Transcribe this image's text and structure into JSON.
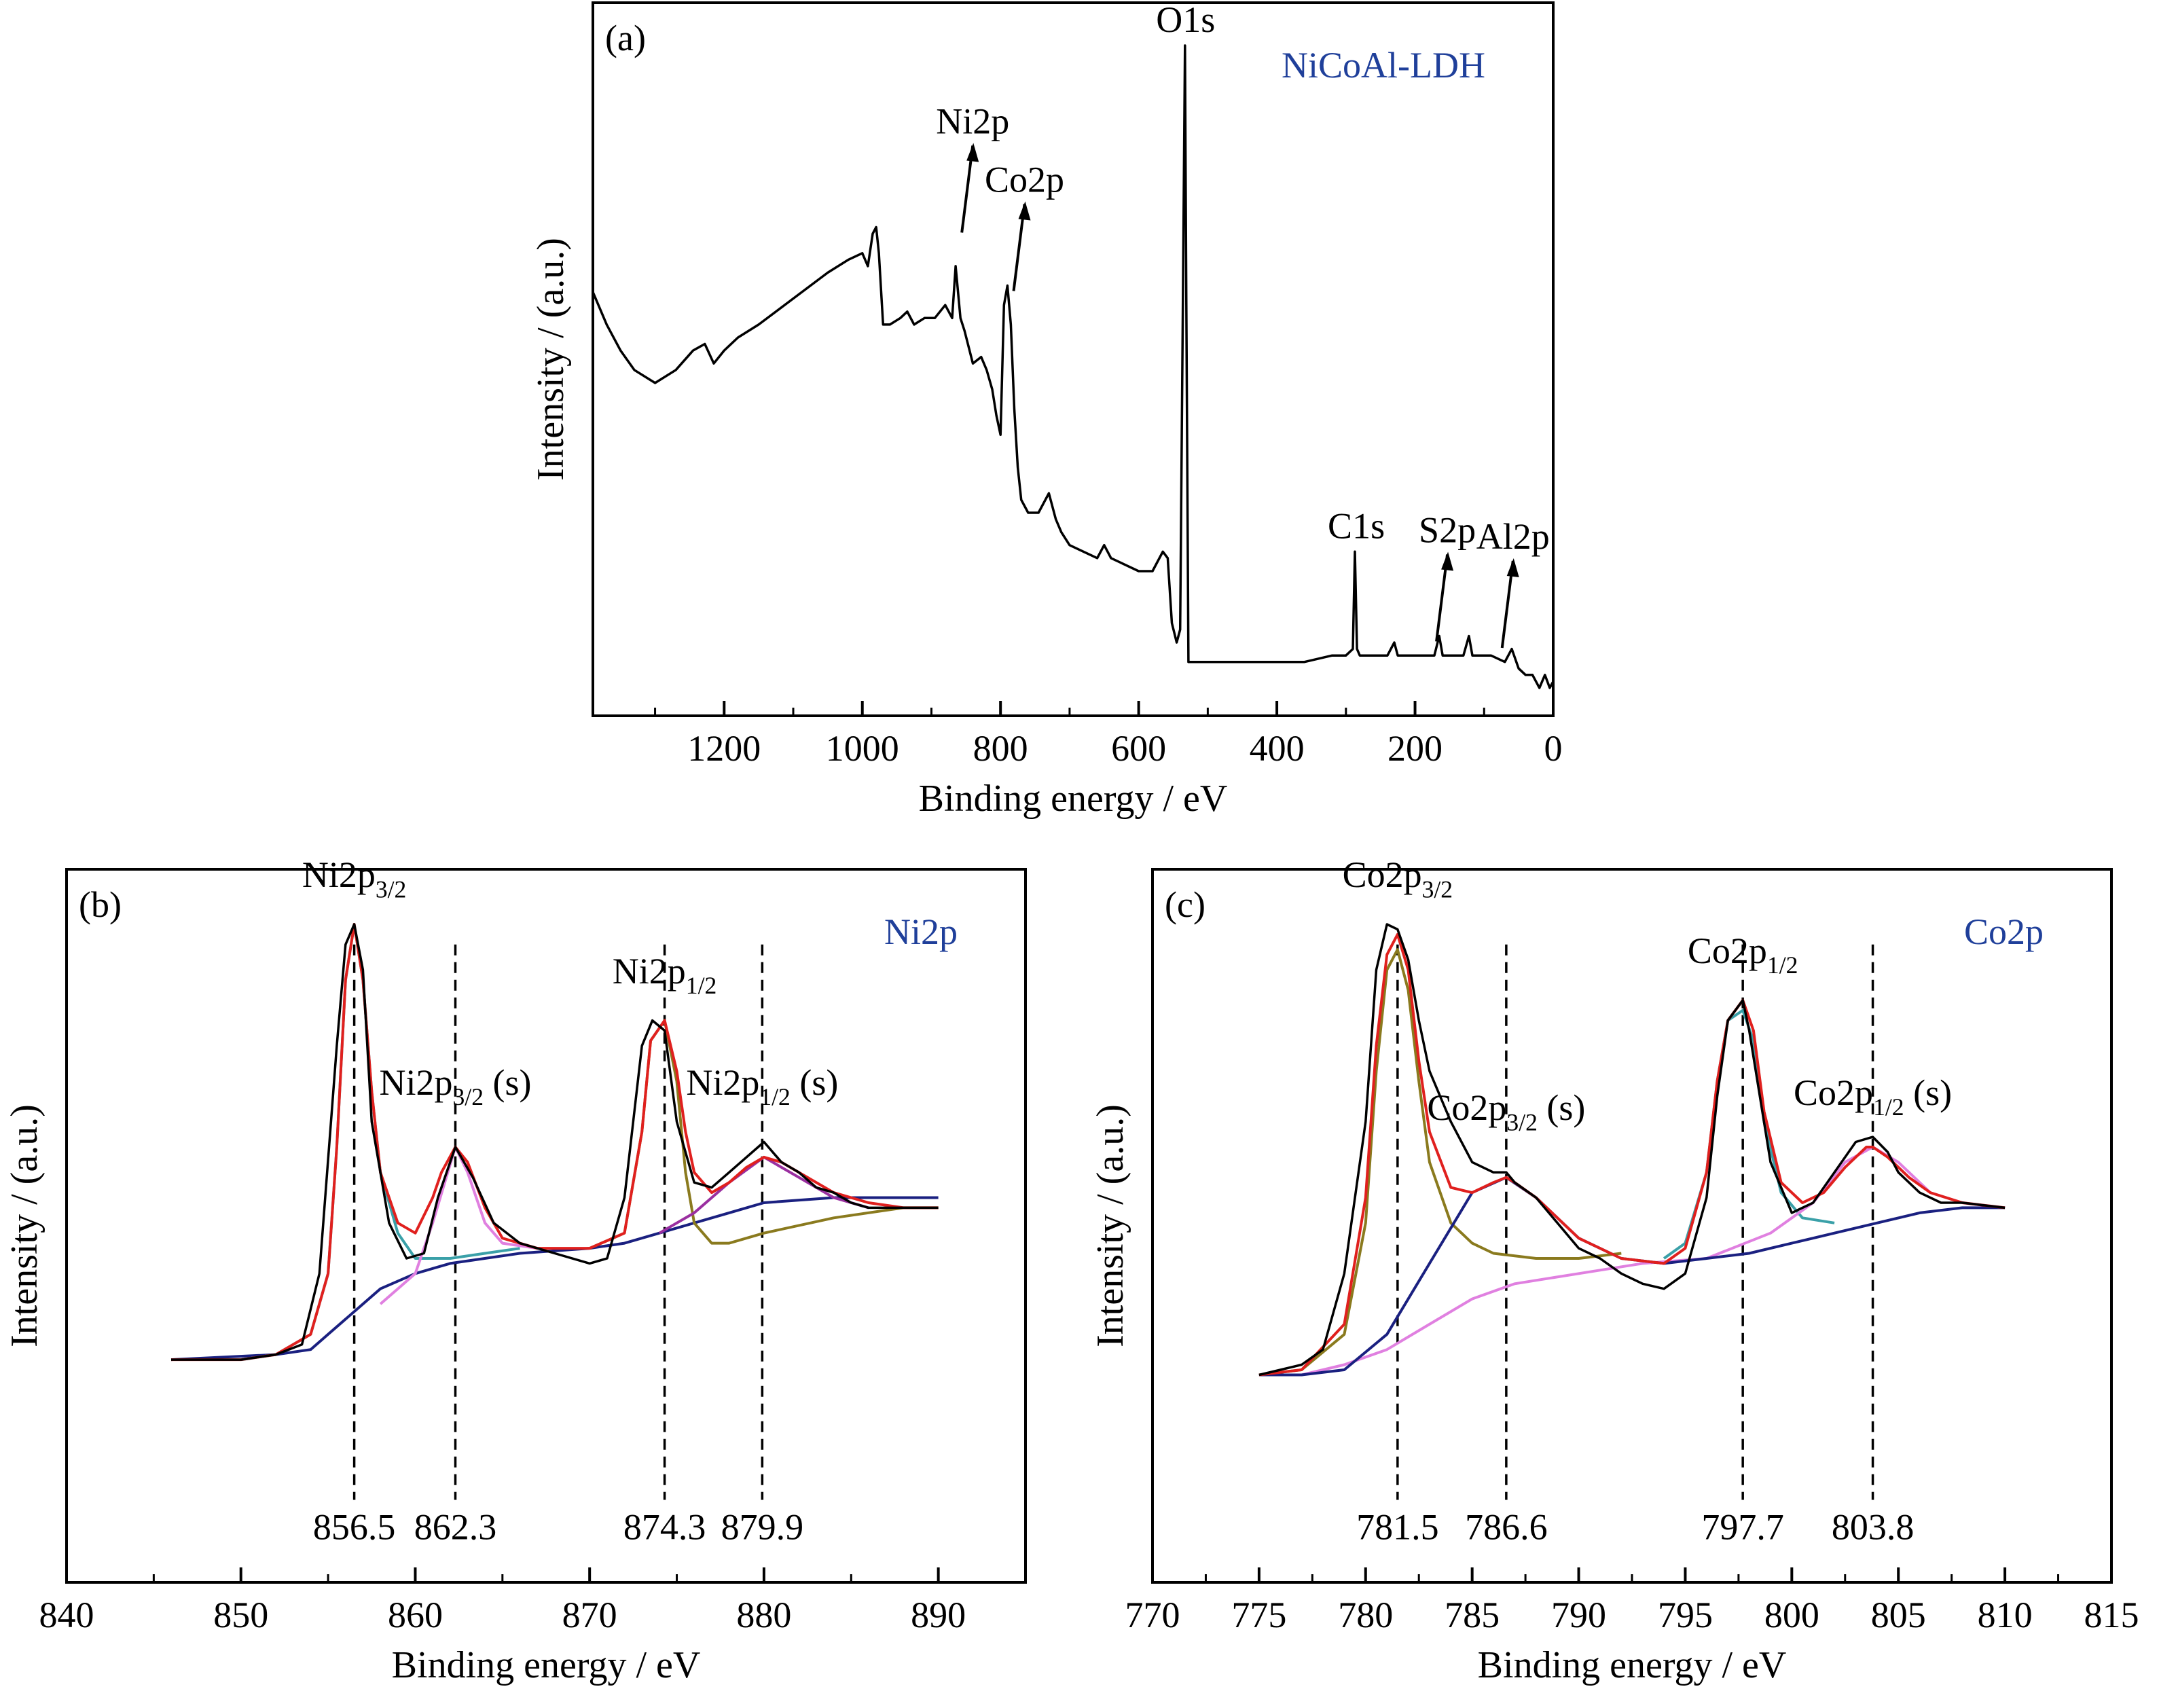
{
  "chart_data": [
    {
      "panel_label": "(a)",
      "legend_title": "NiCoAl-LDH",
      "type": "line",
      "xlabel": "Binding energy / eV",
      "ylabel": "Intensity / (a.u.)",
      "x_reversed": true,
      "xlim": [
        1390,
        0
      ],
      "ylim": [
        0,
        1.0
      ],
      "xticks": [
        1200,
        1000,
        800,
        600,
        400,
        200,
        0
      ],
      "series": [
        {
          "style": "measured",
          "color": "#000000",
          "x": [
            1390,
            1370,
            1350,
            1330,
            1300,
            1270,
            1245,
            1228,
            1215,
            1200,
            1180,
            1150,
            1100,
            1050,
            1020,
            1000,
            992,
            985,
            980,
            976,
            970,
            960,
            945,
            935,
            925,
            910,
            895,
            880,
            870,
            865,
            858,
            852,
            840,
            828,
            820,
            812,
            806,
            800,
            795,
            790,
            785,
            780,
            775,
            770,
            760,
            745,
            730,
            720,
            712,
            700,
            680,
            660,
            650,
            640,
            620,
            600,
            580,
            565,
            558,
            552,
            545,
            540,
            536,
            533,
            531,
            528,
            525,
            520,
            505,
            480,
            450,
            420,
            390,
            360,
            320,
            300,
            290,
            287,
            284,
            280,
            260,
            240,
            230,
            225,
            200,
            172,
            165,
            160,
            130,
            122,
            117,
            110,
            90,
            70,
            60,
            50,
            40,
            30,
            20,
            12,
            5,
            0
          ],
          "y": [
            0.62,
            0.57,
            0.53,
            0.5,
            0.48,
            0.5,
            0.53,
            0.54,
            0.51,
            0.53,
            0.55,
            0.57,
            0.61,
            0.65,
            0.67,
            0.68,
            0.66,
            0.71,
            0.72,
            0.68,
            0.57,
            0.57,
            0.58,
            0.59,
            0.57,
            0.58,
            0.58,
            0.6,
            0.58,
            0.66,
            0.58,
            0.56,
            0.51,
            0.52,
            0.5,
            0.47,
            0.43,
            0.4,
            0.6,
            0.63,
            0.57,
            0.44,
            0.35,
            0.3,
            0.28,
            0.28,
            0.31,
            0.27,
            0.25,
            0.23,
            0.22,
            0.21,
            0.23,
            0.21,
            0.2,
            0.19,
            0.19,
            0.22,
            0.21,
            0.11,
            0.08,
            0.1,
            0.6,
            1.0,
            0.6,
            0.05,
            0.05,
            0.05,
            0.05,
            0.05,
            0.05,
            0.05,
            0.05,
            0.05,
            0.06,
            0.06,
            0.07,
            0.22,
            0.07,
            0.06,
            0.06,
            0.06,
            0.08,
            0.06,
            0.06,
            0.06,
            0.09,
            0.06,
            0.06,
            0.09,
            0.06,
            0.06,
            0.06,
            0.05,
            0.07,
            0.04,
            0.03,
            0.03,
            0.01,
            0.03,
            0.01,
            0.02
          ]
        }
      ],
      "annotations": [
        {
          "text": "O1s",
          "x": 532,
          "y": 1.0,
          "arrow": false
        },
        {
          "text": "Ni2p",
          "x": 856,
          "y": 0.72,
          "arrow": true
        },
        {
          "text": "Co2p",
          "x": 781,
          "y": 0.63,
          "arrow": true
        },
        {
          "text": "C1s",
          "x": 285,
          "y": 0.22,
          "arrow": false
        },
        {
          "text": "S2p",
          "x": 169,
          "y": 0.09,
          "arrow": true
        },
        {
          "text": "Al2p",
          "x": 74,
          "y": 0.08,
          "arrow": true
        }
      ]
    },
    {
      "panel_label": "(b)",
      "legend_title": "Ni2p",
      "type": "line",
      "xlabel": "Binding energy / eV",
      "ylabel": "Intensity / (a.u.)",
      "xlim": [
        840,
        895
      ],
      "ylim": [
        0,
        1.0
      ],
      "xticks": [
        840,
        850,
        860,
        870,
        880,
        890
      ],
      "series": [
        {
          "style": "measured",
          "color": "#000000",
          "x": [
            846,
            848,
            850,
            852,
            853.5,
            854.5,
            855.5,
            856.0,
            856.5,
            857.0,
            857.5,
            858.5,
            859.5,
            860.5,
            861.3,
            862.3,
            863.3,
            864.5,
            866,
            868,
            870,
            871,
            872,
            873,
            873.6,
            874.3,
            875,
            876,
            877,
            878,
            879,
            880,
            881,
            882,
            883,
            884,
            885,
            886,
            887,
            888,
            889,
            890
          ],
          "y": [
            0.13,
            0.13,
            0.13,
            0.14,
            0.16,
            0.3,
            0.75,
            0.95,
            0.99,
            0.9,
            0.6,
            0.4,
            0.33,
            0.34,
            0.45,
            0.55,
            0.49,
            0.4,
            0.36,
            0.34,
            0.32,
            0.33,
            0.45,
            0.75,
            0.8,
            0.78,
            0.6,
            0.48,
            0.47,
            0.5,
            0.53,
            0.56,
            0.52,
            0.5,
            0.47,
            0.46,
            0.44,
            0.43,
            0.43,
            0.43,
            0.43,
            0.43
          ]
        },
        {
          "style": "fit-envelope",
          "color": "#e0201e",
          "x": [
            846,
            850,
            852,
            854,
            855,
            855.5,
            856,
            856.5,
            857,
            857.5,
            858,
            859,
            860,
            861,
            861.5,
            862.3,
            863,
            864,
            865,
            867,
            870,
            872,
            873,
            873.5,
            874.3,
            875,
            875.5,
            876,
            877,
            878,
            879,
            880,
            881,
            882,
            884,
            886,
            888,
            890
          ],
          "y": [
            0.13,
            0.13,
            0.14,
            0.18,
            0.3,
            0.55,
            0.88,
            0.99,
            0.88,
            0.66,
            0.5,
            0.4,
            0.38,
            0.45,
            0.5,
            0.55,
            0.52,
            0.43,
            0.37,
            0.35,
            0.35,
            0.38,
            0.58,
            0.76,
            0.8,
            0.7,
            0.58,
            0.5,
            0.46,
            0.48,
            0.51,
            0.53,
            0.52,
            0.5,
            0.46,
            0.44,
            0.43,
            0.43
          ]
        },
        {
          "style": "component",
          "color": "#3aa0a8",
          "x": [
            850,
            852,
            854,
            855,
            855.5,
            856,
            856.5,
            857,
            857.5,
            858,
            859,
            860,
            862,
            864,
            866
          ],
          "y": [
            0.13,
            0.14,
            0.18,
            0.3,
            0.55,
            0.88,
            0.99,
            0.88,
            0.66,
            0.5,
            0.38,
            0.33,
            0.33,
            0.34,
            0.35
          ]
        },
        {
          "style": "component",
          "color": "#e080e0",
          "x": [
            858,
            859,
            860,
            861,
            862.3,
            863,
            864,
            865,
            867
          ],
          "y": [
            0.24,
            0.27,
            0.3,
            0.4,
            0.55,
            0.5,
            0.4,
            0.36,
            0.35
          ]
        },
        {
          "style": "component",
          "color": "#8a7a1e",
          "x": [
            870,
            872,
            873,
            873.5,
            874.3,
            875,
            875.5,
            876,
            877,
            878,
            880,
            884,
            888,
            890
          ],
          "y": [
            0.35,
            0.38,
            0.58,
            0.76,
            0.8,
            0.68,
            0.5,
            0.4,
            0.36,
            0.36,
            0.38,
            0.41,
            0.43,
            0.43
          ]
        },
        {
          "style": "component",
          "color": "#9a2fa0",
          "x": [
            874,
            876,
            878,
            880,
            882,
            884,
            886
          ],
          "y": [
            0.38,
            0.42,
            0.48,
            0.53,
            0.49,
            0.45,
            0.43
          ]
        },
        {
          "style": "background",
          "color": "#1a2080",
          "x": [
            846,
            852,
            854,
            855,
            856,
            857,
            858,
            860,
            862,
            866,
            870,
            872,
            874,
            876,
            878,
            880,
            884,
            888,
            890
          ],
          "y": [
            0.13,
            0.14,
            0.15,
            0.18,
            0.21,
            0.24,
            0.27,
            0.3,
            0.32,
            0.34,
            0.35,
            0.36,
            0.38,
            0.4,
            0.42,
            0.44,
            0.45,
            0.45,
            0.45
          ]
        }
      ],
      "reference_lines": [
        {
          "x": 856.5,
          "label": "856.5"
        },
        {
          "x": 862.3,
          "label": "862.3"
        },
        {
          "x": 874.3,
          "label": "874.3"
        },
        {
          "x": 879.9,
          "label": "879.9"
        }
      ],
      "annotations": [
        {
          "text": "Ni2p",
          "sub": "3/2",
          "suffix": "",
          "x": 856.5,
          "y": 1.05
        },
        {
          "text": "Ni2p",
          "sub": "3/2",
          "suffix": " (s)",
          "x": 862.3,
          "y": 0.64
        },
        {
          "text": "Ni2p",
          "sub": "1/2",
          "suffix": "",
          "x": 874.3,
          "y": 0.86
        },
        {
          "text": "Ni2p",
          "sub": "1/2",
          "suffix": " (s)",
          "x": 879.9,
          "y": 0.64
        }
      ]
    },
    {
      "panel_label": "(c)",
      "legend_title": "Co2p",
      "type": "line",
      "xlabel": "Binding energy / eV",
      "ylabel": "Intensity / (a.u.)",
      "xlim": [
        770,
        815
      ],
      "ylim": [
        0,
        1.0
      ],
      "xticks": [
        770,
        775,
        780,
        785,
        790,
        795,
        800,
        805,
        810,
        815
      ],
      "series": [
        {
          "style": "measured",
          "color": "#000000",
          "x": [
            775,
            777,
            778,
            779,
            780,
            780.5,
            781,
            781.5,
            782,
            782.5,
            783,
            784,
            785,
            786,
            786.6,
            787,
            788,
            789,
            790,
            791,
            792,
            793,
            794,
            795,
            796,
            796.5,
            797,
            797.7,
            798,
            799,
            800,
            801,
            802,
            803,
            803.8,
            804.5,
            805,
            806,
            807,
            808,
            810
          ],
          "y": [
            0.1,
            0.12,
            0.15,
            0.3,
            0.6,
            0.9,
            0.99,
            0.98,
            0.92,
            0.8,
            0.7,
            0.6,
            0.52,
            0.5,
            0.5,
            0.48,
            0.45,
            0.4,
            0.35,
            0.33,
            0.3,
            0.28,
            0.27,
            0.3,
            0.45,
            0.65,
            0.8,
            0.84,
            0.78,
            0.52,
            0.42,
            0.44,
            0.5,
            0.56,
            0.57,
            0.54,
            0.5,
            0.46,
            0.44,
            0.44,
            0.43
          ]
        },
        {
          "style": "fit-envelope",
          "color": "#e0201e",
          "x": [
            775,
            777,
            779,
            780,
            780.5,
            781,
            781.5,
            782,
            782.5,
            783,
            784,
            785,
            786,
            786.6,
            787,
            788,
            789,
            790,
            792,
            794,
            795,
            796,
            796.5,
            797,
            797.7,
            798.2,
            798.7,
            799.5,
            800.5,
            801.5,
            802.5,
            803.5,
            803.8,
            804.5,
            805.5,
            806.5,
            808,
            810
          ],
          "y": [
            0.1,
            0.11,
            0.2,
            0.45,
            0.75,
            0.93,
            0.97,
            0.9,
            0.72,
            0.58,
            0.47,
            0.46,
            0.48,
            0.49,
            0.48,
            0.45,
            0.41,
            0.37,
            0.33,
            0.32,
            0.35,
            0.5,
            0.68,
            0.8,
            0.84,
            0.78,
            0.62,
            0.48,
            0.44,
            0.46,
            0.51,
            0.55,
            0.55,
            0.53,
            0.49,
            0.46,
            0.44,
            0.43
          ]
        },
        {
          "style": "component",
          "color": "#8a7a1e",
          "x": [
            775,
            777,
            779,
            780,
            780.5,
            781,
            781.5,
            782,
            782.5,
            783,
            784,
            785,
            786,
            788,
            790,
            792
          ],
          "y": [
            0.1,
            0.11,
            0.18,
            0.4,
            0.7,
            0.9,
            0.94,
            0.86,
            0.68,
            0.52,
            0.4,
            0.36,
            0.34,
            0.33,
            0.33,
            0.34
          ]
        },
        {
          "style": "component",
          "color": "#3aa0a8",
          "x": [
            794,
            795,
            796,
            796.5,
            797,
            797.7,
            798.2,
            798.7,
            799.5,
            800.5,
            802
          ],
          "y": [
            0.33,
            0.36,
            0.5,
            0.68,
            0.8,
            0.82,
            0.76,
            0.6,
            0.46,
            0.41,
            0.4
          ]
        },
        {
          "style": "component",
          "color": "#e080e0",
          "x": [
            777,
            779,
            781,
            783,
            785,
            787,
            790,
            793,
            796,
            799,
            801,
            802.5,
            803.8,
            805,
            806.5,
            808,
            810
          ],
          "y": [
            0.1,
            0.12,
            0.15,
            0.2,
            0.25,
            0.28,
            0.3,
            0.32,
            0.33,
            0.38,
            0.44,
            0.52,
            0.55,
            0.52,
            0.46,
            0.44,
            0.43
          ]
        },
        {
          "style": "component",
          "color": "#1a2080",
          "x": [
            775,
            777,
            779,
            781,
            783,
            785,
            786.6,
            788,
            790,
            792,
            794,
            796,
            798,
            800,
            802,
            804,
            806,
            808,
            810
          ],
          "y": [
            0.1,
            0.1,
            0.11,
            0.18,
            0.32,
            0.46,
            0.49,
            0.45,
            0.37,
            0.33,
            0.32,
            0.33,
            0.34,
            0.36,
            0.38,
            0.4,
            0.42,
            0.43,
            0.43
          ]
        }
      ],
      "reference_lines": [
        {
          "x": 781.5,
          "label": "781.5"
        },
        {
          "x": 786.6,
          "label": "786.6"
        },
        {
          "x": 797.7,
          "label": "797.7"
        },
        {
          "x": 803.8,
          "label": "803.8"
        }
      ],
      "annotations": [
        {
          "text": "Co2p",
          "sub": "3/2",
          "suffix": "",
          "x": 781.5,
          "y": 1.05
        },
        {
          "text": "Co2p",
          "sub": "3/2",
          "suffix": " (s)",
          "x": 786.6,
          "y": 0.59
        },
        {
          "text": "Co2p",
          "sub": "1/2",
          "suffix": "",
          "x": 797.7,
          "y": 0.9
        },
        {
          "text": "Co2p",
          "sub": "1/2",
          "suffix": " (s)",
          "x": 803.8,
          "y": 0.62
        }
      ]
    }
  ]
}
